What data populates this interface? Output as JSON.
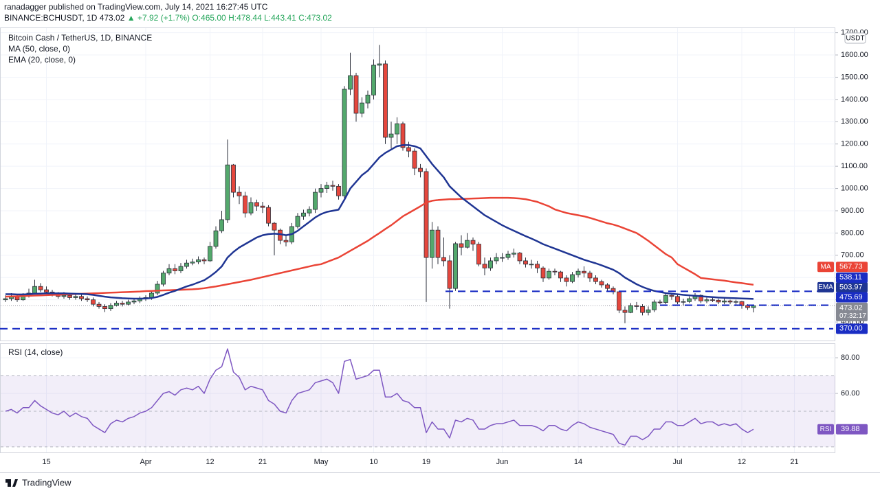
{
  "header": {
    "publisher": "ranadagger published on TradingView.com, July 14, 2021 16:27:45 UTC",
    "symbol": "BINANCE:BCHUSDT, 1D",
    "last": "473.02",
    "change": "▲ +7.92 (+1.7%)",
    "ohlc": "O:465.00 H:478.44 L:443.41 C:473.02"
  },
  "footer": {
    "brand": "TradingView"
  },
  "chart_data": [
    {
      "type": "candlestick",
      "title": "Bitcoin Cash / TetherUS, 1D, BINANCE",
      "currency": "USDT",
      "countdown": "07:32:17",
      "categories": [
        null,
        null,
        null,
        null,
        null,
        null,
        null,
        "15",
        null,
        null,
        null,
        null,
        null,
        null,
        null,
        null,
        null,
        null,
        null,
        null,
        null,
        null,
        null,
        null,
        "Apr",
        null,
        null,
        null,
        null,
        null,
        null,
        null,
        null,
        null,
        null,
        "12",
        null,
        null,
        null,
        null,
        null,
        null,
        null,
        null,
        "21",
        null,
        null,
        null,
        null,
        null,
        null,
        null,
        null,
        null,
        "May",
        null,
        null,
        null,
        null,
        null,
        null,
        null,
        null,
        "10",
        null,
        null,
        null,
        null,
        null,
        null,
        null,
        null,
        "19",
        null,
        null,
        null,
        null,
        null,
        null,
        null,
        null,
        null,
        null,
        null,
        null,
        "Jun",
        null,
        null,
        null,
        null,
        null,
        null,
        null,
        null,
        null,
        null,
        null,
        null,
        "14",
        null,
        null,
        null,
        null,
        null,
        null,
        null,
        null,
        null,
        null,
        null,
        null,
        null,
        null,
        null,
        null,
        "Jul",
        null,
        null,
        null,
        null,
        null,
        null,
        null,
        null,
        null,
        null,
        "12",
        null,
        null,
        null,
        null,
        null,
        null,
        null,
        null,
        "21",
        null,
        null,
        null,
        null,
        null,
        null
      ],
      "open": [
        500,
        505,
        515,
        500,
        520,
        530,
        560,
        545,
        535,
        525,
        515,
        520,
        510,
        515,
        505,
        500,
        480,
        470,
        460,
        475,
        485,
        480,
        490,
        495,
        505,
        510,
        530,
        570,
        620,
        640,
        630,
        650,
        665,
        670,
        680,
        675,
        740,
        810,
        860,
        1106,
        983,
        967,
        890,
        937,
        921,
        915,
        844,
        813,
        767,
        760,
        829,
        875,
        890,
        906,
        983,
        1000,
        1014,
        1010,
        967,
        1446,
        1507,
        1338,
        1384,
        1420,
        1554,
        1560,
        1230,
        1245,
        1291,
        1184,
        1168,
        1091,
        1076,
        690,
        813,
        690,
        675,
        551,
        752,
        736,
        767,
        750,
        660,
        643,
        675,
        690,
        690,
        705,
        710,
        675,
        660,
        660,
        643,
        598,
        628,
        625,
        598,
        582,
        613,
        628,
        620,
        598,
        582,
        567,
        551,
        536,
        453,
        443,
        474,
        470,
        443,
        455,
        490,
        488,
        520,
        515,
        490,
        492,
        505,
        520,
        495,
        500,
        498,
        490,
        495,
        490,
        492,
        474,
        465,
        null,
        null,
        null,
        null,
        null,
        null,
        null,
        null,
        null,
        null,
        null,
        null,
        null
      ],
      "high": [
        520,
        530,
        525,
        530,
        550,
        590,
        575,
        560,
        545,
        535,
        535,
        530,
        525,
        525,
        515,
        510,
        490,
        480,
        485,
        495,
        495,
        500,
        505,
        515,
        520,
        540,
        585,
        630,
        660,
        660,
        665,
        680,
        685,
        695,
        690,
        760,
        830,
        900,
        1220,
        1110,
        1010,
        985,
        960,
        950,
        940,
        925,
        850,
        820,
        790,
        845,
        890,
        905,
        920,
        1000,
        1020,
        1030,
        1035,
        1020,
        1460,
        1610,
        1520,
        1410,
        1440,
        1580,
        1645,
        1575,
        1300,
        1320,
        1300,
        1210,
        1180,
        1110,
        1090,
        850,
        830,
        780,
        700,
        760,
        790,
        800,
        780,
        760,
        690,
        690,
        710,
        710,
        720,
        730,
        715,
        690,
        680,
        675,
        650,
        640,
        640,
        630,
        610,
        625,
        640,
        650,
        630,
        610,
        590,
        575,
        560,
        540,
        470,
        485,
        490,
        480,
        470,
        500,
        500,
        530,
        530,
        525,
        505,
        515,
        530,
        525,
        510,
        515,
        505,
        505,
        500,
        500,
        495,
        480,
        478.44,
        null,
        null,
        null,
        null,
        null,
        null,
        null,
        null,
        null,
        null,
        null,
        null,
        null
      ],
      "low": [
        490,
        495,
        490,
        495,
        510,
        525,
        535,
        525,
        515,
        505,
        505,
        500,
        500,
        495,
        490,
        470,
        460,
        445,
        450,
        470,
        470,
        475,
        480,
        485,
        495,
        500,
        520,
        560,
        610,
        615,
        620,
        640,
        655,
        660,
        660,
        670,
        730,
        800,
        845,
        960,
        930,
        870,
        880,
        900,
        890,
        830,
        700,
        750,
        740,
        750,
        820,
        860,
        875,
        890,
        960,
        980,
        990,
        950,
        950,
        1420,
        1300,
        1320,
        1360,
        1400,
        1500,
        1200,
        1180,
        1200,
        1170,
        1140,
        1060,
        1050,
        490,
        640,
        660,
        650,
        460,
        540,
        700,
        730,
        720,
        650,
        610,
        630,
        660,
        670,
        680,
        690,
        660,
        645,
        640,
        620,
        580,
        590,
        610,
        580,
        560,
        575,
        600,
        600,
        580,
        570,
        555,
        540,
        525,
        440,
        395,
        440,
        455,
        430,
        430,
        445,
        480,
        480,
        500,
        480,
        475,
        485,
        495,
        485,
        485,
        490,
        480,
        480,
        480,
        475,
        460,
        455,
        443.41,
        null,
        null,
        null,
        null,
        null,
        null,
        null,
        null,
        null,
        null,
        null,
        null,
        null
      ],
      "close": [
        505,
        515,
        500,
        520,
        530,
        560,
        545,
        535,
        525,
        515,
        520,
        510,
        515,
        505,
        500,
        480,
        470,
        460,
        475,
        485,
        480,
        490,
        495,
        505,
        510,
        530,
        570,
        620,
        640,
        630,
        650,
        665,
        670,
        680,
        675,
        740,
        810,
        860,
        1106,
        983,
        967,
        890,
        937,
        921,
        915,
        844,
        813,
        767,
        760,
        829,
        875,
        890,
        906,
        983,
        1000,
        1014,
        1010,
        967,
        1446,
        1507,
        1338,
        1384,
        1420,
        1554,
        1560,
        1230,
        1245,
        1291,
        1184,
        1168,
        1091,
        1076,
        690,
        813,
        690,
        675,
        551,
        752,
        736,
        767,
        750,
        660,
        643,
        675,
        690,
        690,
        705,
        710,
        675,
        660,
        660,
        643,
        598,
        628,
        625,
        598,
        582,
        613,
        628,
        620,
        598,
        582,
        567,
        551,
        536,
        453,
        443,
        474,
        470,
        443,
        455,
        490,
        488,
        520,
        515,
        490,
        492,
        505,
        520,
        495,
        500,
        498,
        490,
        495,
        490,
        492,
        474,
        465,
        473.02,
        null,
        null,
        null,
        null,
        null,
        null,
        null,
        null,
        null,
        null,
        null,
        null,
        null
      ],
      "up_color": "#53a86c",
      "down_color": "#e5473d",
      "series": [
        {
          "name": "MA (50, close, 0)",
          "short": "MA",
          "color": "#ea4436",
          "values": [
            514,
            515,
            516,
            517,
            518,
            519,
            520,
            521,
            522,
            523,
            524,
            525,
            526,
            527,
            528,
            529,
            530,
            531,
            532,
            533,
            534,
            535,
            536,
            537,
            539,
            540,
            541,
            542,
            543,
            544,
            545,
            546,
            547,
            549,
            552,
            556,
            560,
            565,
            570,
            575,
            580,
            585,
            590,
            596,
            602,
            608,
            614,
            620,
            626,
            632,
            638,
            644,
            650,
            656,
            660,
            670,
            680,
            690,
            705,
            720,
            735,
            750,
            765,
            783,
            800,
            818,
            835,
            855,
            875,
            890,
            905,
            920,
            937,
            945,
            948,
            950,
            952,
            952,
            953,
            954,
            955,
            956,
            957,
            958,
            958,
            958,
            958,
            957,
            955,
            952,
            946,
            940,
            930,
            920,
            906,
            898,
            890,
            885,
            880,
            875,
            868,
            860,
            852,
            844,
            838,
            830,
            820,
            810,
            800,
            783,
            765,
            745,
            725,
            705,
            690,
            660,
            645,
            630,
            615,
            598,
            595,
            592,
            589,
            586,
            582,
            578,
            575,
            571,
            567.73,
            null,
            null,
            null,
            null,
            null,
            null,
            null,
            null,
            null,
            null,
            null,
            null,
            null
          ]
        },
        {
          "name": "EMA (20, close, 0)",
          "short": "EMA",
          "color": "#1f3593",
          "values": [
            525,
            525,
            524,
            524,
            525,
            527,
            528,
            529,
            529,
            529,
            529,
            528,
            527,
            526,
            525,
            522,
            518,
            514,
            511,
            509,
            507,
            506,
            505,
            505,
            506,
            508,
            513,
            522,
            532,
            540,
            550,
            560,
            568,
            578,
            588,
            605,
            625,
            650,
            690,
            715,
            735,
            750,
            765,
            780,
            790,
            795,
            797,
            795,
            790,
            795,
            810,
            830,
            850,
            870,
            885,
            895,
            900,
            905,
            950,
            1000,
            1030,
            1060,
            1080,
            1110,
            1140,
            1160,
            1175,
            1190,
            1195,
            1195,
            1190,
            1180,
            1145,
            1110,
            1080,
            1050,
            1010,
            985,
            960,
            940,
            920,
            900,
            880,
            865,
            850,
            835,
            822,
            810,
            798,
            786,
            775,
            763,
            750,
            740,
            730,
            720,
            710,
            700,
            690,
            680,
            672,
            664,
            655,
            645,
            635,
            620,
            600,
            585,
            570,
            558,
            548,
            540,
            535,
            530,
            527,
            525,
            522,
            520,
            518,
            516,
            514,
            512,
            510,
            509,
            508,
            507,
            506,
            505,
            503.97,
            null,
            null,
            null,
            null,
            null,
            null,
            null,
            null,
            null,
            null,
            null,
            null,
            null
          ]
        }
      ],
      "levels": [
        538.11,
        475.69,
        {
          "value": 370,
          "label": "370.00"
        }
      ],
      "level_color": "#1a2dc4",
      "ylim": [
        317,
        1705
      ],
      "yticks": [
        {
          "value": 400,
          "label": "400.00"
        },
        {
          "value": 500,
          "label": "500.00"
        },
        {
          "value": 600,
          "label": "600.00"
        },
        {
          "value": 700,
          "label": "700.00"
        },
        {
          "value": 800,
          "label": "800.00"
        },
        {
          "value": 900,
          "label": "900.00"
        },
        {
          "value": 1000,
          "label": "1000.00"
        },
        {
          "value": 1100,
          "label": "1100.00"
        },
        {
          "value": 1200,
          "label": "1200.00"
        },
        {
          "value": 1300,
          "label": "1300.00"
        },
        {
          "value": 1400,
          "label": "1400.00"
        },
        {
          "value": 1500,
          "label": "1500.00"
        },
        {
          "value": 1600,
          "label": "1600.00"
        },
        {
          "value": 1700,
          "label": "1700.00"
        }
      ],
      "grid": true
    },
    {
      "type": "line",
      "title": "RSI (14, close)",
      "series": [
        {
          "name": "RSI",
          "color": "#7e57c2",
          "values": [
            50,
            51,
            49,
            52,
            52,
            56,
            53,
            51,
            49,
            48,
            50,
            47,
            49,
            47,
            46,
            42,
            40,
            38,
            43,
            45,
            44,
            46,
            47,
            49,
            50,
            52,
            56,
            60,
            61,
            59,
            62,
            63,
            62,
            64,
            60,
            68,
            73,
            75,
            85,
            72,
            69,
            62,
            64,
            63,
            62,
            56,
            54,
            50,
            49,
            56,
            60,
            61,
            62,
            66,
            67,
            68,
            66,
            60,
            78,
            79,
            68,
            69,
            70,
            73,
            73,
            58,
            58,
            60,
            56,
            55,
            52,
            52,
            38,
            44,
            40,
            40,
            35,
            45,
            44,
            46,
            45,
            40,
            40,
            42,
            43,
            43,
            44,
            45,
            42,
            42,
            42,
            41,
            39,
            42,
            42,
            40,
            39,
            42,
            44,
            43,
            41,
            40,
            39,
            38,
            37,
            32,
            31,
            36,
            36,
            34,
            36,
            40,
            40,
            44,
            44,
            42,
            42,
            44,
            46,
            43,
            44,
            44,
            42,
            43,
            42,
            43,
            40,
            38,
            39.88,
            null,
            null,
            null,
            null,
            null,
            null,
            null,
            null,
            null,
            null,
            null,
            null,
            null
          ]
        }
      ],
      "band": [
        30,
        70
      ],
      "midline": 50,
      "ylim": [
        26.5,
        86.2
      ],
      "yticks": [
        {
          "value": 60,
          "label": "60.00"
        },
        {
          "value": 80,
          "label": "80.00"
        }
      ],
      "grid": true
    }
  ]
}
